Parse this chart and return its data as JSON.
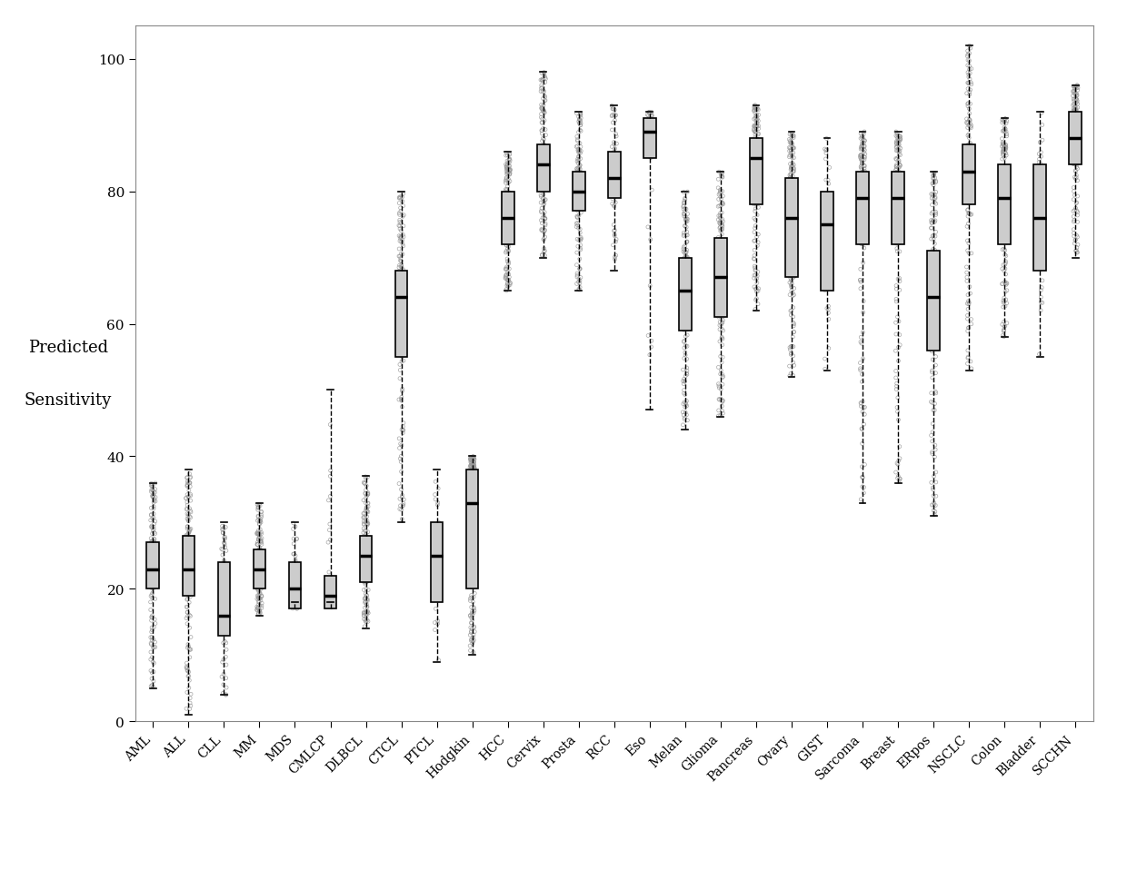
{
  "categories": [
    "AML",
    "ALL",
    "CLL",
    "MM",
    "MDS",
    "CMLCP",
    "DLBCL",
    "CTCL",
    "PTCL",
    "Hodgkin",
    "HCC",
    "Cervix",
    "Prosta",
    "RCC",
    "Eso",
    "Melan",
    "Glioma",
    "Pancreas",
    "Ovary",
    "GIST",
    "Sarcoma",
    "Breast",
    "ERpos",
    "NSCLC",
    "Colon",
    "Bladder",
    "SCCHN"
  ],
  "box_stats": {
    "AML": {
      "median": 23,
      "q1": 20,
      "q3": 27,
      "whislo": 5,
      "whishi": 36,
      "n": 200
    },
    "ALL": {
      "median": 23,
      "q1": 19,
      "q3": 28,
      "whislo": 1,
      "whishi": 38,
      "n": 200
    },
    "CLL": {
      "median": 16,
      "q1": 13,
      "q3": 24,
      "whislo": 4,
      "whishi": 30,
      "n": 80
    },
    "MM": {
      "median": 23,
      "q1": 20,
      "q3": 26,
      "whislo": 16,
      "whishi": 33,
      "n": 200
    },
    "MDS": {
      "median": 20,
      "q1": 17,
      "q3": 24,
      "whislo": 18,
      "whishi": 30,
      "n": 50
    },
    "CMLCP": {
      "median": 19,
      "q1": 17,
      "q3": 22,
      "whislo": 18,
      "whishi": 50,
      "n": 40
    },
    "DLBCL": {
      "median": 25,
      "q1": 21,
      "q3": 28,
      "whislo": 14,
      "whishi": 37,
      "n": 200
    },
    "CTCL": {
      "median": 64,
      "q1": 55,
      "q3": 68,
      "whislo": 30,
      "whishi": 80,
      "n": 200
    },
    "PTCL": {
      "median": 25,
      "q1": 18,
      "q3": 30,
      "whislo": 9,
      "whishi": 38,
      "n": 30
    },
    "Hodgkin": {
      "median": 33,
      "q1": 20,
      "q3": 38,
      "whislo": 10,
      "whishi": 40,
      "n": 200
    },
    "HCC": {
      "median": 76,
      "q1": 72,
      "q3": 80,
      "whislo": 65,
      "whishi": 86,
      "n": 200
    },
    "Cervix": {
      "median": 84,
      "q1": 80,
      "q3": 87,
      "whislo": 70,
      "whishi": 98,
      "n": 200
    },
    "Prosta": {
      "median": 80,
      "q1": 77,
      "q3": 83,
      "whislo": 65,
      "whishi": 92,
      "n": 200
    },
    "RCC": {
      "median": 82,
      "q1": 79,
      "q3": 86,
      "whislo": 68,
      "whishi": 93,
      "n": 80
    },
    "Eso": {
      "median": 89,
      "q1": 85,
      "q3": 91,
      "whislo": 47,
      "whishi": 92,
      "n": 40
    },
    "Melan": {
      "median": 65,
      "q1": 59,
      "q3": 70,
      "whislo": 44,
      "whishi": 80,
      "n": 200
    },
    "Glioma": {
      "median": 67,
      "q1": 61,
      "q3": 73,
      "whislo": 46,
      "whishi": 83,
      "n": 200
    },
    "Pancreas": {
      "median": 85,
      "q1": 78,
      "q3": 88,
      "whislo": 62,
      "whishi": 93,
      "n": 200
    },
    "Ovary": {
      "median": 76,
      "q1": 67,
      "q3": 82,
      "whislo": 52,
      "whishi": 89,
      "n": 200
    },
    "GIST": {
      "median": 75,
      "q1": 65,
      "q3": 80,
      "whislo": 53,
      "whishi": 88,
      "n": 40
    },
    "Sarcoma": {
      "median": 79,
      "q1": 72,
      "q3": 83,
      "whislo": 33,
      "whishi": 89,
      "n": 200
    },
    "Breast": {
      "median": 79,
      "q1": 72,
      "q3": 83,
      "whislo": 36,
      "whishi": 89,
      "n": 200
    },
    "ERpos": {
      "median": 64,
      "q1": 56,
      "q3": 71,
      "whislo": 31,
      "whishi": 83,
      "n": 200
    },
    "NSCLC": {
      "median": 83,
      "q1": 78,
      "q3": 87,
      "whislo": 53,
      "whishi": 102,
      "n": 200
    },
    "Colon": {
      "median": 79,
      "q1": 72,
      "q3": 84,
      "whislo": 58,
      "whishi": 91,
      "n": 200
    },
    "Bladder": {
      "median": 76,
      "q1": 68,
      "q3": 84,
      "whislo": 55,
      "whishi": 92,
      "n": 40
    },
    "SCCHN": {
      "median": 88,
      "q1": 84,
      "q3": 92,
      "whislo": 70,
      "whishi": 96,
      "n": 200
    }
  },
  "ylabel_line1": "Predicted",
  "ylabel_line2": "Sensitivity",
  "ylim": [
    0,
    105
  ],
  "yticks": [
    0,
    20,
    40,
    60,
    80,
    100
  ],
  "background_color": "#ffffff",
  "box_facecolor": "#cccccc",
  "box_edgecolor": "#000000",
  "median_color": "#000000",
  "whisker_color": "#000000",
  "scatter_edgecolor": "#999999",
  "box_width": 0.35,
  "jitter_amount": 0.07
}
